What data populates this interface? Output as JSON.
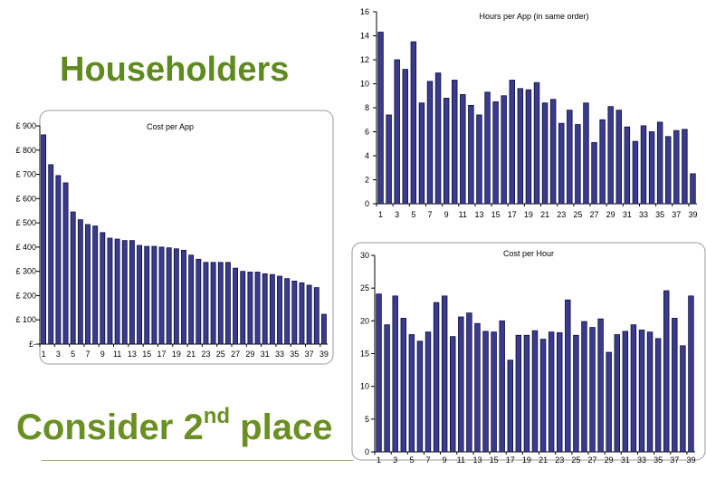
{
  "titles": {
    "top": "Householders",
    "bottom_main": "Consider 2",
    "bottom_sup": "nd",
    "bottom_tail": " place"
  },
  "colors": {
    "bar_fill": "#3b3b8e",
    "bar_stroke": "#0d0d3d",
    "title": "#5f8a1e"
  },
  "chart_data": [
    {
      "id": "hours",
      "type": "bar",
      "title": "Hours per App (in same order)",
      "ylim": [
        0,
        16
      ],
      "yticks": [
        0,
        2,
        4,
        6,
        8,
        10,
        12,
        14,
        16
      ],
      "ytick_labels": [
        "0",
        "2",
        "4",
        "6",
        "8",
        "10",
        "12",
        "14",
        "16"
      ],
      "categories": [
        1,
        2,
        3,
        4,
        5,
        6,
        7,
        8,
        9,
        10,
        11,
        12,
        13,
        14,
        15,
        16,
        17,
        18,
        19,
        20,
        21,
        22,
        23,
        24,
        25,
        26,
        27,
        28,
        29,
        30,
        31,
        32,
        33,
        34,
        35,
        36,
        37,
        38,
        39
      ],
      "xtick_labels": [
        "1",
        "3",
        "5",
        "7",
        "9",
        "11",
        "13",
        "15",
        "17",
        "19",
        "21",
        "23",
        "25",
        "27",
        "29",
        "31",
        "33",
        "35",
        "37",
        "39"
      ],
      "values": [
        14.3,
        7.4,
        12.0,
        11.2,
        13.5,
        8.4,
        10.2,
        10.9,
        8.8,
        10.3,
        9.1,
        8.2,
        7.4,
        9.3,
        8.5,
        9.0,
        10.3,
        9.6,
        9.5,
        10.1,
        8.4,
        8.7,
        6.7,
        7.8,
        6.6,
        8.4,
        5.1,
        7.0,
        8.1,
        7.8,
        6.4,
        5.2,
        6.5,
        6.0,
        6.8,
        5.6,
        6.1,
        6.2,
        2.5
      ]
    },
    {
      "id": "cost_app",
      "type": "bar",
      "title": "Cost per App",
      "ylim": [
        0,
        900
      ],
      "yticks": [
        0,
        100,
        200,
        300,
        400,
        500,
        600,
        700,
        800,
        900
      ],
      "ytick_labels": [
        "£-",
        "£ 100",
        "£ 200",
        "£ 300",
        "£ 400",
        "£ 500",
        "£ 600",
        "£ 700",
        "£ 800",
        "£ 900"
      ],
      "categories": [
        1,
        2,
        3,
        4,
        5,
        6,
        7,
        8,
        9,
        10,
        11,
        12,
        13,
        14,
        15,
        16,
        17,
        18,
        19,
        20,
        21,
        22,
        23,
        24,
        25,
        26,
        27,
        28,
        29,
        30,
        31,
        32,
        33,
        34,
        35,
        36,
        37,
        38,
        39
      ],
      "xtick_labels": [
        "1",
        "3",
        "5",
        "7",
        "9",
        "11",
        "13",
        "15",
        "17",
        "19",
        "21",
        "23",
        "25",
        "27",
        "29",
        "31",
        "33",
        "35",
        "37",
        "39"
      ],
      "values": [
        863,
        740,
        695,
        665,
        545,
        513,
        493,
        487,
        460,
        437,
        433,
        427,
        427,
        407,
        403,
        403,
        400,
        397,
        393,
        387,
        367,
        350,
        337,
        337,
        337,
        337,
        313,
        300,
        297,
        297,
        290,
        287,
        280,
        270,
        260,
        253,
        243,
        233,
        123
      ]
    },
    {
      "id": "cost_hour",
      "type": "bar",
      "title": "Cost per Hour",
      "ylim": [
        0,
        30
      ],
      "yticks": [
        0,
        5,
        10,
        15,
        20,
        25,
        30
      ],
      "ytick_labels": [
        "0",
        "5",
        "10",
        "15",
        "20",
        "25",
        "30"
      ],
      "categories": [
        1,
        2,
        3,
        4,
        5,
        6,
        7,
        8,
        9,
        10,
        11,
        12,
        13,
        14,
        15,
        16,
        17,
        18,
        19,
        20,
        21,
        22,
        23,
        24,
        25,
        26,
        27,
        28,
        29,
        30,
        31,
        32,
        33,
        34,
        35,
        36,
        37,
        38,
        39
      ],
      "xtick_labels": [
        "1",
        "3",
        "5",
        "7",
        "9",
        "11",
        "13",
        "15",
        "17",
        "19",
        "21",
        "23",
        "25",
        "27",
        "29",
        "31",
        "33",
        "35",
        "37",
        "39"
      ],
      "values": [
        24.1,
        19.4,
        23.8,
        20.4,
        17.9,
        16.9,
        18.3,
        22.8,
        23.8,
        17.6,
        20.6,
        21.2,
        19.6,
        18.4,
        18.3,
        20.0,
        14.0,
        17.8,
        17.8,
        18.5,
        17.2,
        18.3,
        18.2,
        23.2,
        17.8,
        19.9,
        19.0,
        20.3,
        15.2,
        17.9,
        18.4,
        19.4,
        18.6,
        18.3,
        17.3,
        24.6,
        20.4,
        16.2,
        23.8
      ]
    }
  ]
}
